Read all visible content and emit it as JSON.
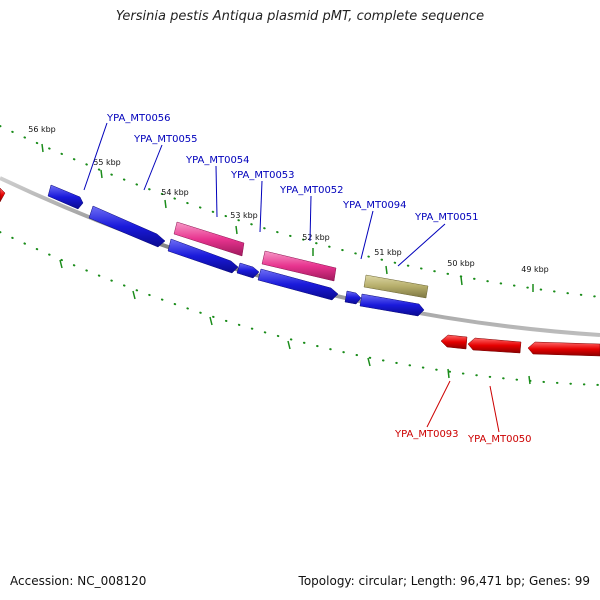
{
  "title": "Yersinia pestis Antiqua plasmid pMT, complete sequence",
  "footer": {
    "accession": "Accession: NC_008120",
    "summary": "Topology: circular; Length: 96,471 bp; Genes: 99"
  },
  "colors": {
    "forward_gene": "#1a1adb",
    "reverse_gene": "#e60000",
    "pink_gene": "#e8348f",
    "olive_gene": "#b5ad6a",
    "backbone": "#8a8a8a",
    "tick": "#1a8c1a",
    "forward_label": "#0000bb",
    "reverse_label": "#cc0000"
  },
  "tick_labels": [
    "56 kbp",
    "55 kbp",
    "54 kbp",
    "53 kbp",
    "52 kbp",
    "51 kbp",
    "50 kbp",
    "49 kbp"
  ],
  "gene_labels": {
    "forward": [
      "YPA_MT0056",
      "YPA_MT0055",
      "YPA_MT0054",
      "YPA_MT0053",
      "YPA_MT0052",
      "YPA_MT0094",
      "YPA_MT0051"
    ],
    "reverse": [
      "YPA_MT0093",
      "YPA_MT0050"
    ]
  }
}
